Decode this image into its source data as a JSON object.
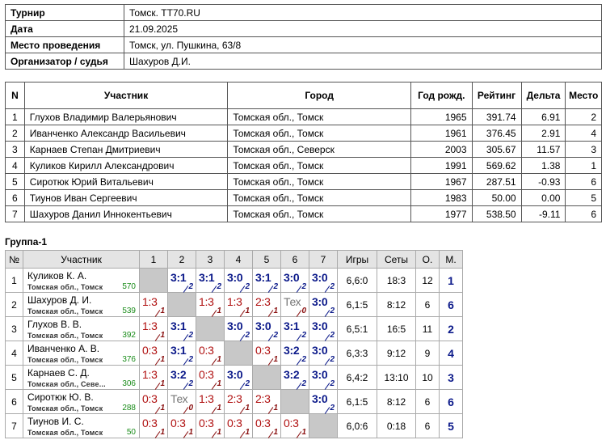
{
  "tournament": {
    "rows": [
      {
        "label": "Турнир",
        "value": "Томск. TT70.RU"
      },
      {
        "label": "Дата",
        "value": "21.09.2025"
      },
      {
        "label": "Место проведения",
        "value": "Томск, ул. Пушкина, 63/8"
      },
      {
        "label": "Организатор / судья",
        "value": "Шахуров Д.И."
      }
    ]
  },
  "participants": {
    "headers": {
      "n": "N",
      "name": "Участник",
      "city": "Город",
      "year": "Год рожд.",
      "rating": "Рейтинг",
      "delta": "Дельта",
      "place": "Место"
    },
    "rows": [
      {
        "n": "1",
        "name": "Глухов Владимир Валерьянович",
        "city": "Томская обл., Томск",
        "year": "1965",
        "rating": "391.74",
        "delta": "6.91",
        "place": "2"
      },
      {
        "n": "2",
        "name": "Иванченко Александр Васильевич",
        "city": "Томская обл., Томск",
        "year": "1961",
        "rating": "376.45",
        "delta": "2.91",
        "place": "4"
      },
      {
        "n": "3",
        "name": "Карнаев Степан Дмитриевич",
        "city": "Томская обл., Северск",
        "year": "2003",
        "rating": "305.67",
        "delta": "11.57",
        "place": "3"
      },
      {
        "n": "4",
        "name": "Куликов Кирилл Александрович",
        "city": "Томская обл., Томск",
        "year": "1991",
        "rating": "569.62",
        "delta": "1.38",
        "place": "1"
      },
      {
        "n": "5",
        "name": "Сиротюк Юрий Витальевич",
        "city": "Томская обл., Томск",
        "year": "1967",
        "rating": "287.51",
        "delta": "-0.93",
        "place": "6"
      },
      {
        "n": "6",
        "name": "Тиунов Иван Сергеевич",
        "city": "Томская обл., Томск",
        "year": "1983",
        "rating": "50.00",
        "delta": "0.00",
        "place": "5"
      },
      {
        "n": "7",
        "name": "Шахуров Данил Иннокентьевич",
        "city": "Томская обл., Томск",
        "year": "1977",
        "rating": "538.50",
        "delta": "-9.11",
        "place": "6"
      }
    ]
  },
  "group": {
    "title": "Группа-1",
    "headers": {
      "n": "№",
      "name": "Участник",
      "cols": [
        "1",
        "2",
        "3",
        "4",
        "5",
        "6",
        "7"
      ],
      "games": "Игры",
      "sets": "Сеты",
      "points": "О.",
      "place": "М."
    },
    "rows": [
      {
        "n": "1",
        "name": "Куликов К. А.",
        "city": "Томская обл., Томск",
        "rating": "570",
        "cells": [
          null,
          {
            "s": "3:1",
            "c": "2",
            "t": "win"
          },
          {
            "s": "3:1",
            "c": "2",
            "t": "win"
          },
          {
            "s": "3:0",
            "c": "2",
            "t": "win"
          },
          {
            "s": "3:1",
            "c": "2",
            "t": "win"
          },
          {
            "s": "3:0",
            "c": "2",
            "t": "win"
          },
          {
            "s": "3:0",
            "c": "2",
            "t": "win"
          }
        ],
        "games": "6,6:0",
        "sets": "18:3",
        "points": "12",
        "place": "1"
      },
      {
        "n": "2",
        "name": "Шахуров Д. И.",
        "city": "Томская обл., Томск",
        "rating": "539",
        "cells": [
          {
            "s": "1:3",
            "c": "1",
            "t": "loss"
          },
          null,
          {
            "s": "1:3",
            "c": "1",
            "t": "loss"
          },
          {
            "s": "1:3",
            "c": "1",
            "t": "loss"
          },
          {
            "s": "2:3",
            "c": "1",
            "t": "loss"
          },
          {
            "s": "Тех",
            "c": "0",
            "t": "tech"
          },
          {
            "s": "3:0",
            "c": "2",
            "t": "win"
          }
        ],
        "games": "6,1:5",
        "sets": "8:12",
        "points": "6",
        "place": "6"
      },
      {
        "n": "3",
        "name": "Глухов В. В.",
        "city": "Томская обл., Томск",
        "rating": "392",
        "cells": [
          {
            "s": "1:3",
            "c": "1",
            "t": "loss"
          },
          {
            "s": "3:1",
            "c": "2",
            "t": "win"
          },
          null,
          {
            "s": "3:0",
            "c": "2",
            "t": "win"
          },
          {
            "s": "3:0",
            "c": "2",
            "t": "win"
          },
          {
            "s": "3:1",
            "c": "2",
            "t": "win"
          },
          {
            "s": "3:0",
            "c": "2",
            "t": "win"
          }
        ],
        "games": "6,5:1",
        "sets": "16:5",
        "points": "11",
        "place": "2"
      },
      {
        "n": "4",
        "name": "Иванченко А. В.",
        "city": "Томская обл., Томск",
        "rating": "376",
        "cells": [
          {
            "s": "0:3",
            "c": "1",
            "t": "loss"
          },
          {
            "s": "3:1",
            "c": "2",
            "t": "win"
          },
          {
            "s": "0:3",
            "c": "1",
            "t": "loss"
          },
          null,
          {
            "s": "0:3",
            "c": "1",
            "t": "loss"
          },
          {
            "s": "3:2",
            "c": "2",
            "t": "win"
          },
          {
            "s": "3:0",
            "c": "2",
            "t": "win"
          }
        ],
        "games": "6,3:3",
        "sets": "9:12",
        "points": "9",
        "place": "4"
      },
      {
        "n": "5",
        "name": "Карнаев С. Д.",
        "city": "Томская обл., Севе...",
        "rating": "306",
        "cells": [
          {
            "s": "1:3",
            "c": "1",
            "t": "loss"
          },
          {
            "s": "3:2",
            "c": "2",
            "t": "win"
          },
          {
            "s": "0:3",
            "c": "1",
            "t": "loss"
          },
          {
            "s": "3:0",
            "c": "2",
            "t": "win"
          },
          null,
          {
            "s": "3:2",
            "c": "2",
            "t": "win"
          },
          {
            "s": "3:0",
            "c": "2",
            "t": "win"
          }
        ],
        "games": "6,4:2",
        "sets": "13:10",
        "points": "10",
        "place": "3"
      },
      {
        "n": "6",
        "name": "Сиротюк Ю. В.",
        "city": "Томская обл., Томск",
        "rating": "288",
        "cells": [
          {
            "s": "0:3",
            "c": "1",
            "t": "loss"
          },
          {
            "s": "Тех",
            "c": "0",
            "t": "tech"
          },
          {
            "s": "1:3",
            "c": "1",
            "t": "loss"
          },
          {
            "s": "2:3",
            "c": "1",
            "t": "loss"
          },
          {
            "s": "2:3",
            "c": "1",
            "t": "loss"
          },
          null,
          {
            "s": "3:0",
            "c": "2",
            "t": "win"
          }
        ],
        "games": "6,1:5",
        "sets": "8:12",
        "points": "6",
        "place": "6"
      },
      {
        "n": "7",
        "name": "Тиунов И. С.",
        "city": "Томская обл., Томск",
        "rating": "50",
        "cells": [
          {
            "s": "0:3",
            "c": "1",
            "t": "loss"
          },
          {
            "s": "0:3",
            "c": "1",
            "t": "loss"
          },
          {
            "s": "0:3",
            "c": "1",
            "t": "loss"
          },
          {
            "s": "0:3",
            "c": "1",
            "t": "loss"
          },
          {
            "s": "0:3",
            "c": "1",
            "t": "loss"
          },
          {
            "s": "0:3",
            "c": "1",
            "t": "loss"
          },
          null
        ],
        "games": "6,0:6",
        "sets": "0:18",
        "points": "6",
        "place": "5"
      }
    ]
  },
  "colors": {
    "win": "#0c1a8a",
    "loss": "#b01010",
    "rating": "#1a8c1a",
    "diagonal": "#c8c8c8",
    "header_bg": "#e4e4e4"
  }
}
